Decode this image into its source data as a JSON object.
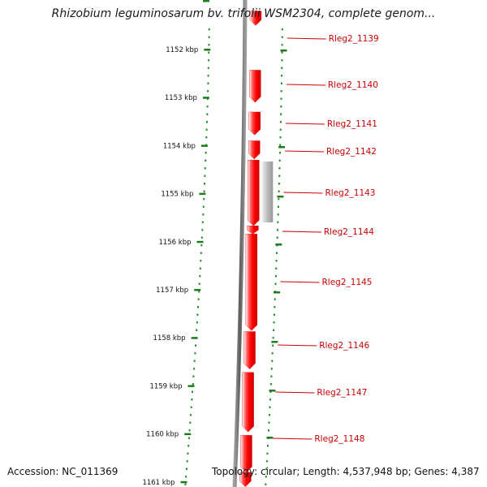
{
  "title": "Rhizobium leguminosarum bv. trifolii WSM2304, complete genom...",
  "footer": {
    "accession": "Accession: NC_011369",
    "stats": "Topology: circular; Length: 4,537,948 bp; Genes: 4,387"
  },
  "scale": {
    "unit": "kbp",
    "visible_range_kbp": [
      1151,
      1161.1
    ],
    "ticks": [
      "1152 kbp",
      "1153 kbp",
      "1154 kbp",
      "1155 kbp",
      "1156 kbp",
      "1157 kbp",
      "1158 kbp",
      "1159 kbp",
      "1160 kbp",
      "1161 kbp"
    ]
  },
  "genes": [
    {
      "name": "Rleg2_1139",
      "start_kbp": 1151.2,
      "end_kbp": 1151.5,
      "strand": "-"
    },
    {
      "name": "Rleg2_1140",
      "start_kbp": 1152.43,
      "end_kbp": 1153.1,
      "strand": "-"
    },
    {
      "name": "Rleg2_1141",
      "start_kbp": 1153.3,
      "end_kbp": 1153.78,
      "strand": "-"
    },
    {
      "name": "Rleg2_1142",
      "start_kbp": 1153.9,
      "end_kbp": 1154.28,
      "strand": "-"
    },
    {
      "name": "Rleg2_1143",
      "start_kbp": 1154.3,
      "end_kbp": 1155.67,
      "strand": "-"
    },
    {
      "name": "Rleg2_1144",
      "start_kbp": 1155.67,
      "end_kbp": 1155.84,
      "strand": "-"
    },
    {
      "name": "Rleg2_1145",
      "start_kbp": 1155.84,
      "end_kbp": 1157.85,
      "strand": "-"
    },
    {
      "name": "Rleg2_1146",
      "start_kbp": 1157.87,
      "end_kbp": 1158.65,
      "strand": "-"
    },
    {
      "name": "Rleg2_1147",
      "start_kbp": 1158.72,
      "end_kbp": 1159.96,
      "strand": "-"
    },
    {
      "name": "Rleg2_1148",
      "start_kbp": 1160.03,
      "end_kbp": 1160.8,
      "strand": "-"
    },
    {
      "name": "",
      "start_kbp": 1160.8,
      "end_kbp": 1161.1,
      "strand": "-"
    }
  ],
  "secondary_features": [
    {
      "start_kbp": 1154.33,
      "end_kbp": 1155.6,
      "color": "#b3b3b3"
    }
  ],
  "colors": {
    "gene": "#ff0000",
    "gene_label": "#cc0000",
    "tick": "#1e7b1e",
    "dot": "#2e8b2e",
    "backbone": "#6f6f6f",
    "secondary_feature": "#b3b3b3"
  }
}
